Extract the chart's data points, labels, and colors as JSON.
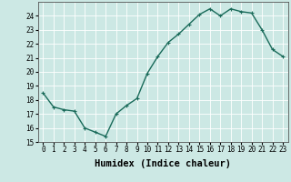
{
  "x": [
    0,
    1,
    2,
    3,
    4,
    5,
    6,
    7,
    8,
    9,
    10,
    11,
    12,
    13,
    14,
    15,
    16,
    17,
    18,
    19,
    20,
    21,
    22,
    23
  ],
  "y": [
    18.5,
    17.5,
    17.3,
    17.2,
    16.0,
    15.7,
    15.4,
    17.0,
    17.6,
    18.1,
    19.9,
    21.1,
    22.1,
    22.7,
    23.4,
    24.1,
    24.5,
    24.0,
    24.5,
    24.3,
    24.2,
    23.0,
    21.6,
    21.1
  ],
  "line_color": "#1a6b5a",
  "marker": "+",
  "marker_size": 3,
  "bg_color": "#cce8e4",
  "grid_color": "#ffffff",
  "xlabel": "Humidex (Indice chaleur)",
  "ylim": [
    15,
    25
  ],
  "xlim": [
    -0.5,
    23.5
  ],
  "yticks": [
    15,
    16,
    17,
    18,
    19,
    20,
    21,
    22,
    23,
    24
  ],
  "xticks": [
    0,
    1,
    2,
    3,
    4,
    5,
    6,
    7,
    8,
    9,
    10,
    11,
    12,
    13,
    14,
    15,
    16,
    17,
    18,
    19,
    20,
    21,
    22,
    23
  ],
  "tick_labelsize": 5.5,
  "xlabel_fontsize": 7.5,
  "line_width": 1.0
}
